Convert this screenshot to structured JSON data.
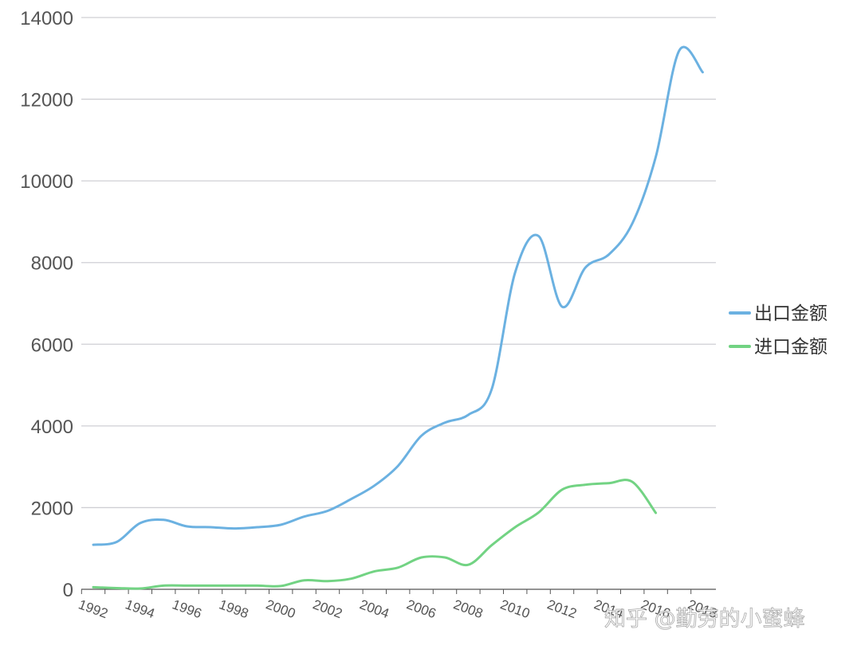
{
  "chart_data": {
    "type": "line",
    "title": "",
    "xlabel": "",
    "ylabel": "",
    "x": [
      1992,
      1993,
      1994,
      1995,
      1996,
      1997,
      1998,
      1999,
      2000,
      2001,
      2002,
      2003,
      2004,
      2005,
      2006,
      2007,
      2008,
      2009,
      2010,
      2011,
      2012,
      2013,
      2014,
      2015,
      2016,
      2017,
      2018
    ],
    "x_tick_labels": [
      "1992",
      "1994",
      "1996",
      "1998",
      "2000",
      "2002",
      "2004",
      "2006",
      "2008",
      "2010",
      "2012",
      "2014",
      "2016",
      "2018"
    ],
    "ylim": [
      0,
      14000
    ],
    "y_ticks": [
      0,
      2000,
      4000,
      6000,
      8000,
      10000,
      12000,
      14000
    ],
    "y_tick_labels": [
      "0",
      "2000",
      "4000",
      "6000",
      "8000",
      "10000",
      "12000",
      "14000"
    ],
    "grid": "horizontal",
    "legend_position": "right",
    "series": [
      {
        "name": "出口金额",
        "color": "#6bb1e1",
        "values": [
          1090,
          1160,
          1620,
          1700,
          1540,
          1520,
          1490,
          1520,
          1580,
          1780,
          1920,
          2210,
          2540,
          3020,
          3760,
          4080,
          4270,
          4900,
          7760,
          8650,
          6920,
          7880,
          8200,
          8960,
          10590,
          13190,
          12660
        ]
      },
      {
        "name": "进口金额",
        "color": "#72d383",
        "values": [
          50,
          30,
          20,
          90,
          90,
          90,
          90,
          90,
          80,
          220,
          200,
          260,
          440,
          530,
          780,
          780,
          600,
          1080,
          1520,
          1880,
          2440,
          2560,
          2600,
          2630,
          1870,
          null,
          null
        ]
      }
    ]
  },
  "watermark": "知乎 @勤劳的小蜜蜂"
}
